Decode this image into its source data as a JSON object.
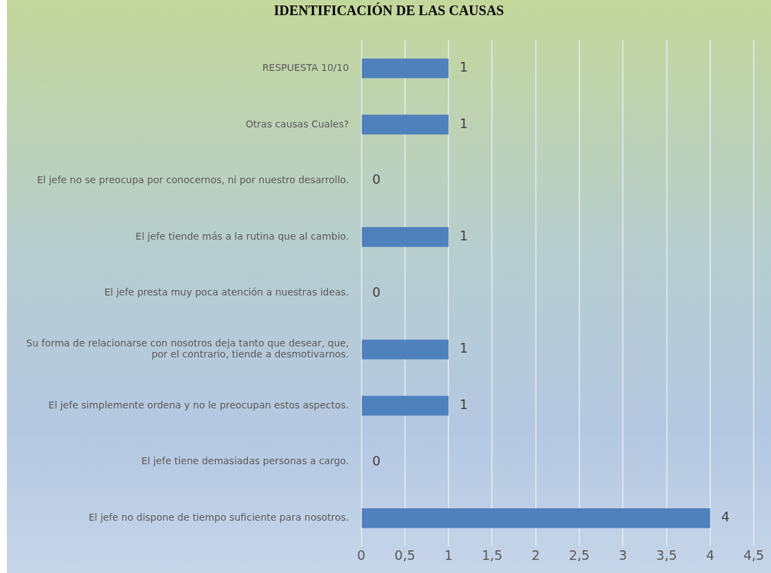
{
  "chart_data": {
    "type": "bar",
    "orientation": "horizontal",
    "title": "IDENTIFICACIÓN DE LAS CAUSAS",
    "categories": [
      "RESPUESTA 10/10",
      "Otras causas Cuales?",
      "El jefe no se preocupa por conocernos, ni por nuestro desarrollo.",
      "El jefe tiende más a la rutina que al cambio.",
      "El jefe presta muy poca atención a nuestras ideas.",
      "Su forma de relacionarse con nosotros deja tanto que desear, que, por el contrario, tiende a desmotivarnos.",
      "El jefe simplemente ordena y no le preocupan estos aspectos.",
      "El jefe tiene demasiadas personas a cargo.",
      "El jefe no dispone de tiempo suficiente para nosotros."
    ],
    "values": [
      1,
      1,
      0,
      1,
      0,
      1,
      1,
      0,
      4
    ],
    "color": "#4f81bd",
    "xlim": [
      0,
      4.5
    ],
    "xticks": [
      0,
      {
        "value": 0.5,
        "label": "0,5"
      },
      1,
      {
        "value": 1.5,
        "label": "1,5"
      },
      2,
      {
        "value": 2.5,
        "label": "2,5"
      },
      3,
      {
        "value": 3.5,
        "label": "3,5"
      },
      4,
      {
        "value": 4.5,
        "label": "4,5"
      }
    ],
    "grid": "x",
    "data_labels": true,
    "legend": false
  }
}
